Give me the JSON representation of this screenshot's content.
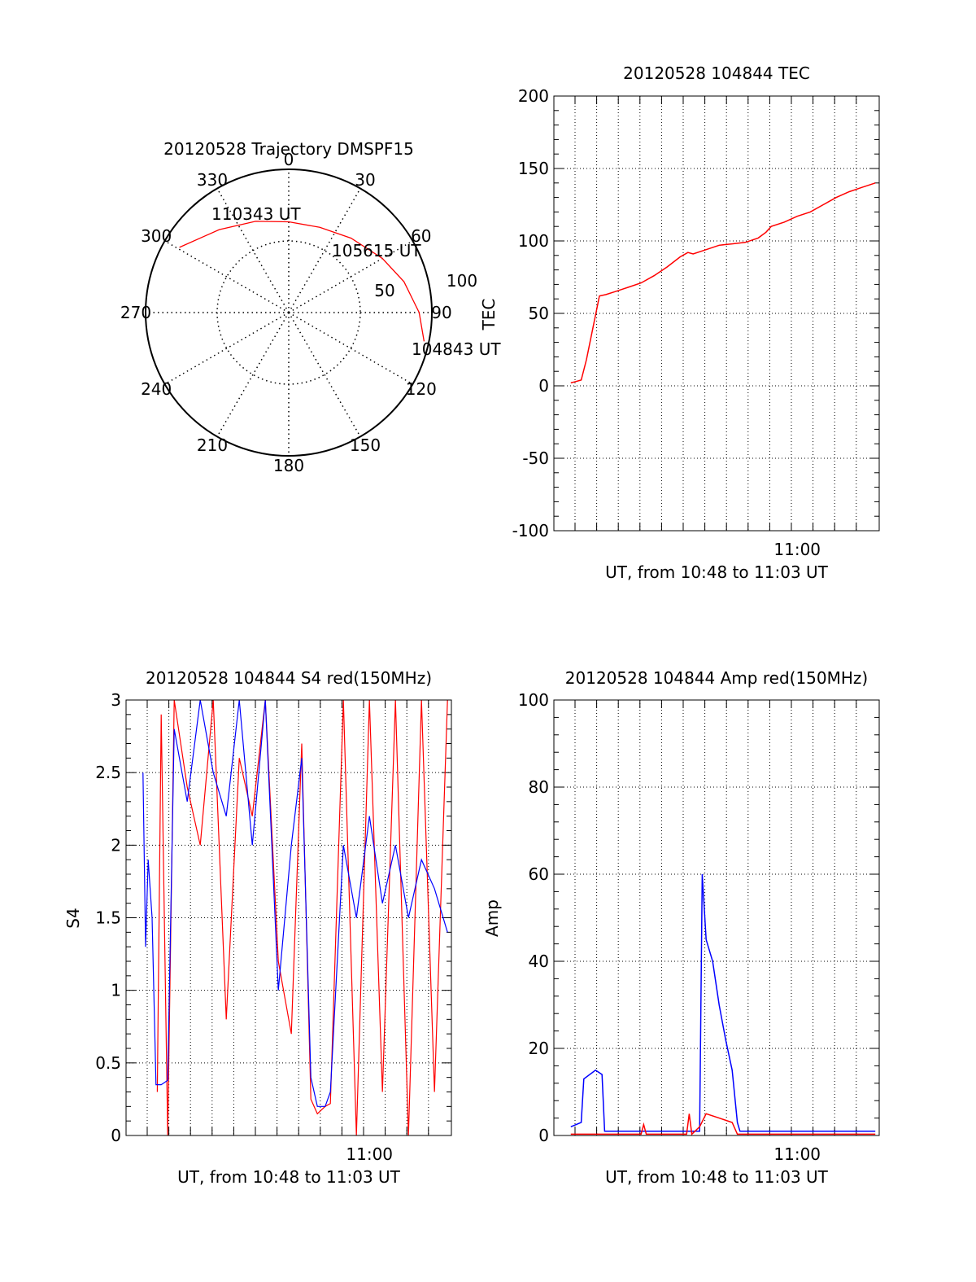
{
  "chart_data": [
    {
      "type": "polar",
      "title": "20120528 Trajectory DMSPF15",
      "azimuth_labels": [
        "0",
        "30",
        "60",
        "90",
        "120",
        "150",
        "180",
        "210",
        "240",
        "270",
        "300",
        "330"
      ],
      "elevation_ring_labels": [
        "50",
        "100"
      ],
      "grid": "dotted",
      "series": [
        {
          "color": "#ff0000",
          "points": [
            {
              "az": 300.8,
              "el": 10
            },
            {
              "az": 320,
              "el": 22
            },
            {
              "az": 340,
              "el": 29
            },
            {
              "az": 0,
              "el": 33
            },
            {
              "az": 20,
              "el": 33
            },
            {
              "az": 40,
              "el": 29
            },
            {
              "az": 60,
              "el": 22
            },
            {
              "az": 75,
              "el": 15
            },
            {
              "az": 90,
              "el": 8
            },
            {
              "az": 102,
              "el": 3
            }
          ]
        }
      ],
      "annotations": [
        {
          "text": "110343 UT",
          "az": 300.8,
          "el": 10
        },
        {
          "text": "105615 UT",
          "az": 50,
          "el": 29
        },
        {
          "text": "104843 UT",
          "az": 102,
          "el": 3
        }
      ]
    },
    {
      "type": "line",
      "title": "20120528 104844 TEC",
      "xlabel": "UT, from 10:48 to 11:03 UT",
      "ylabel": "TEC",
      "xlim": [
        10.813,
        11.063
      ],
      "ylim": [
        -100,
        200
      ],
      "yticks": [
        -100,
        -50,
        0,
        50,
        100,
        150,
        200
      ],
      "xticks": [
        {
          "value": 11.0,
          "label": "11:00"
        }
      ],
      "grid": true,
      "series": [
        {
          "color": "#ff0000",
          "x": [
            10.826,
            10.83,
            10.834,
            10.838,
            10.843,
            10.848,
            10.853,
            10.86,
            10.87,
            10.88,
            10.89,
            10.9,
            10.91,
            10.916,
            10.92,
            10.93,
            10.94,
            10.95,
            10.96,
            10.97,
            10.976,
            10.98,
            10.99,
            11.0,
            11.01,
            11.02,
            11.03,
            11.04,
            11.05,
            11.06
          ],
          "y": [
            2,
            3,
            4,
            18,
            40,
            62,
            63,
            65,
            68,
            71,
            76,
            82,
            89,
            92,
            91,
            94,
            97,
            98,
            99,
            102,
            106,
            110,
            113,
            117,
            120,
            125,
            130,
            134,
            137,
            140
          ]
        }
      ]
    },
    {
      "type": "line",
      "title": "20120528 104844 S4 red(150MHz)",
      "xlabel": "UT, from 10:48 to 11:03 UT",
      "ylabel": "S4",
      "xlim": [
        10.813,
        11.063
      ],
      "ylim": [
        0,
        3
      ],
      "yticks": [
        0,
        0.5,
        1,
        1.5,
        2,
        2.5,
        3
      ],
      "xticks": [
        {
          "value": 11.0,
          "label": "11:00"
        }
      ],
      "grid": true,
      "series": [
        {
          "color": "#ff0000",
          "x": [
            10.837,
            10.84,
            10.845,
            10.85,
            10.86,
            10.87,
            10.88,
            10.89,
            10.9,
            10.91,
            10.92,
            10.93,
            10.94,
            10.948,
            10.955,
            10.96,
            10.966,
            10.97,
            10.98,
            10.99,
            11.0,
            11.01,
            11.02,
            11.03,
            11.04,
            11.05,
            11.06
          ],
          "y": [
            0.3,
            2.9,
            0.0,
            3.0,
            2.4,
            2.0,
            3.0,
            0.8,
            2.6,
            2.2,
            3.0,
            1.2,
            0.7,
            2.7,
            0.25,
            0.15,
            0.2,
            0.22,
            3.0,
            0.0,
            3.0,
            0.3,
            3.0,
            0.0,
            3.0,
            0.3,
            3.0
          ]
        },
        {
          "color": "#0000ff",
          "x": [
            10.826,
            10.828,
            10.83,
            10.833,
            10.836,
            10.84,
            10.845,
            10.85,
            10.86,
            10.87,
            10.88,
            10.89,
            10.9,
            10.91,
            10.92,
            10.93,
            10.94,
            10.948,
            10.955,
            10.96,
            10.966,
            10.97,
            10.98,
            10.99,
            11.0,
            11.01,
            11.02,
            11.03,
            11.04,
            11.05,
            11.06
          ],
          "y": [
            2.5,
            1.3,
            1.9,
            1.5,
            0.35,
            0.35,
            0.38,
            2.8,
            2.3,
            3.0,
            2.5,
            2.2,
            3.0,
            2.0,
            3.0,
            1.0,
            2.0,
            2.6,
            0.4,
            0.2,
            0.2,
            0.3,
            2.0,
            1.5,
            2.2,
            1.6,
            2.0,
            1.5,
            1.9,
            1.7,
            1.4
          ]
        }
      ]
    },
    {
      "type": "line",
      "title": "20120528 104844 Amp red(150MHz)",
      "xlabel": "UT, from 10:48 to 11:03 UT",
      "ylabel": "Amp",
      "xlim": [
        10.813,
        11.063
      ],
      "ylim": [
        0,
        100
      ],
      "yticks": [
        0,
        20,
        40,
        60,
        80,
        100
      ],
      "xticks": [
        {
          "value": 11.0,
          "label": "11:00"
        }
      ],
      "grid": true,
      "series": [
        {
          "color": "#0000ff",
          "x": [
            10.826,
            10.834,
            10.836,
            10.845,
            10.85,
            10.852,
            10.87,
            10.9,
            10.925,
            10.927,
            10.93,
            10.935,
            10.94,
            10.945,
            10.95,
            10.954,
            10.956,
            10.98,
            11.0,
            11.03,
            11.06
          ],
          "y": [
            2,
            3,
            13,
            15,
            14,
            1,
            1,
            1,
            1,
            60,
            45,
            40,
            30,
            22,
            15,
            3,
            1,
            1,
            1,
            1,
            1
          ]
        },
        {
          "color": "#ff0000",
          "x": [
            10.826,
            10.88,
            10.882,
            10.884,
            10.9,
            10.915,
            10.917,
            10.919,
            10.925,
            10.93,
            10.94,
            10.95,
            10.954,
            10.96,
            11.06
          ],
          "y": [
            0.3,
            0.3,
            2.5,
            0.3,
            0.3,
            0.3,
            5,
            0.3,
            2,
            5,
            4,
            3,
            0.3,
            0.3,
            0.3
          ]
        }
      ]
    }
  ]
}
